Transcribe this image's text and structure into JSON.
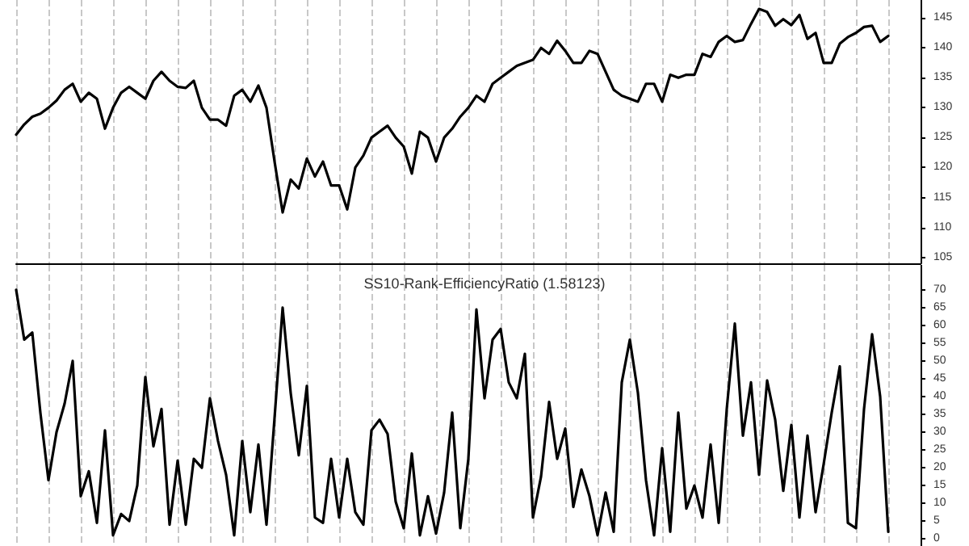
{
  "chart_data": [
    {
      "type": "line",
      "categories": [
        null,
        null,
        null,
        null,
        null,
        null,
        null,
        null,
        null,
        null,
        null,
        null,
        null,
        null,
        null,
        null,
        null,
        null,
        null,
        null,
        null,
        null,
        null,
        null,
        null,
        null,
        null,
        null,
        null,
        null,
        null,
        null,
        null,
        null,
        null,
        null,
        null,
        null,
        null,
        null,
        null,
        null,
        null,
        null,
        null,
        null,
        null,
        null,
        null,
        null,
        null,
        null,
        null,
        null,
        null,
        null,
        null,
        null,
        null,
        null,
        null,
        null,
        null,
        null,
        null,
        null,
        null,
        null,
        null,
        null,
        null,
        null,
        null,
        null,
        null,
        null,
        null,
        null,
        null,
        null,
        null,
        null,
        null,
        null,
        null,
        null,
        null,
        null,
        null,
        null,
        null,
        null,
        null,
        null,
        null,
        null,
        null,
        null,
        null,
        null,
        null,
        null,
        null,
        null,
        null,
        null,
        null,
        null,
        null,
        null,
        null,
        null,
        null
      ],
      "series": [
        {
          "color": "#000000",
          "values": [
            125.5,
            127.2,
            128.5,
            129,
            130,
            131.2,
            133,
            134,
            131,
            132.5,
            131.5,
            126.5,
            130,
            132.5,
            133.5,
            132.5,
            131.5,
            134.5,
            136,
            134.5,
            133.5,
            133.3,
            134.5,
            130,
            128,
            128,
            127,
            132,
            133,
            131,
            133.7,
            130,
            121,
            112.5,
            118,
            116.5,
            121.5,
            118.5,
            121,
            117,
            117,
            113,
            120,
            122,
            125,
            126,
            127,
            125,
            123.5,
            119,
            126,
            125,
            121,
            125,
            126.5,
            128.5,
            130,
            132,
            131,
            134,
            135,
            136,
            137,
            137.5,
            138,
            140,
            139,
            141.2,
            139.5,
            137.5,
            137.5,
            139.5,
            139,
            136,
            133,
            132,
            131.5,
            131,
            134,
            134,
            131,
            135.5,
            135,
            135.5,
            135.5,
            139,
            138.5,
            141,
            142,
            141,
            141.3,
            144,
            146.5,
            146,
            143.7,
            144.8,
            143.8,
            145.5,
            141.5,
            142.5,
            137.5,
            137.5,
            140.7,
            141.8,
            142.5,
            143.5,
            143.7,
            141,
            142,
            null,
            null,
            null,
            null
          ]
        }
      ],
      "ylim": [
        104,
        148
      ],
      "yticks": [
        105,
        110,
        115,
        120,
        125,
        130,
        135,
        140,
        145
      ],
      "grid": "x",
      "tick_labels": "y"
    },
    {
      "type": "line",
      "title": "SS10-Rank-EfficiencyRatio (1.58123)",
      "categories": [
        null,
        null,
        null,
        null,
        null,
        null,
        null,
        null,
        null,
        null,
        null,
        null,
        null,
        null,
        null,
        null,
        null,
        null,
        null,
        null,
        null,
        null,
        null,
        null,
        null,
        null,
        null,
        null,
        null,
        null,
        null,
        null,
        null,
        null,
        null,
        null,
        null,
        null,
        null,
        null,
        null,
        null,
        null,
        null,
        null,
        null,
        null,
        null,
        null,
        null,
        null,
        null,
        null,
        null,
        null,
        null,
        null,
        null,
        null,
        null,
        null,
        null,
        null,
        null,
        null,
        null,
        null,
        null,
        null,
        null,
        null,
        null,
        null,
        null,
        null,
        null,
        null,
        null,
        null,
        null,
        null,
        null,
        null,
        null,
        null,
        null,
        null,
        null,
        null,
        null,
        null,
        null,
        null,
        null,
        null,
        null,
        null,
        null,
        null,
        null,
        null,
        null,
        null,
        null,
        null,
        null,
        null,
        null,
        null,
        null,
        null,
        null,
        null
      ],
      "series": [
        {
          "color": "#000000",
          "values": [
            70,
            56,
            58,
            35.5,
            16.5,
            30,
            38,
            50,
            12,
            19,
            4.5,
            30.5,
            1,
            7,
            5,
            15,
            45.5,
            26,
            36.5,
            4,
            22,
            4,
            22.5,
            20,
            39.5,
            27.5,
            18,
            1,
            27.5,
            7.5,
            26.5,
            4,
            34,
            65,
            41,
            23.5,
            43,
            6,
            4.5,
            22.5,
            6,
            22.5,
            7.5,
            4,
            30.5,
            33.5,
            29.5,
            10.5,
            3,
            24,
            1,
            12,
            1.5,
            13,
            35.5,
            3,
            22.5,
            64.5,
            39.5,
            56,
            59,
            44,
            39.5,
            52,
            6,
            17.5,
            38.5,
            22.5,
            31,
            9,
            19.5,
            12,
            1,
            13,
            2,
            44,
            56,
            41,
            16.5,
            1,
            25.5,
            2,
            35.5,
            8.5,
            15,
            6,
            26.5,
            4.5,
            36.5,
            60.5,
            29,
            44,
            18,
            44.5,
            33.5,
            13.5,
            32,
            6,
            29,
            7.5,
            21,
            35.5,
            48.5,
            4.5,
            3,
            36.5,
            57.5,
            40,
            2,
            null,
            null,
            null,
            null
          ]
        }
      ],
      "ylim": [
        -2,
        77
      ],
      "yticks": [
        0,
        5,
        10,
        15,
        20,
        25,
        30,
        35,
        40,
        45,
        50,
        55,
        60,
        65,
        70
      ],
      "grid": "x",
      "tick_labels": "y"
    }
  ]
}
